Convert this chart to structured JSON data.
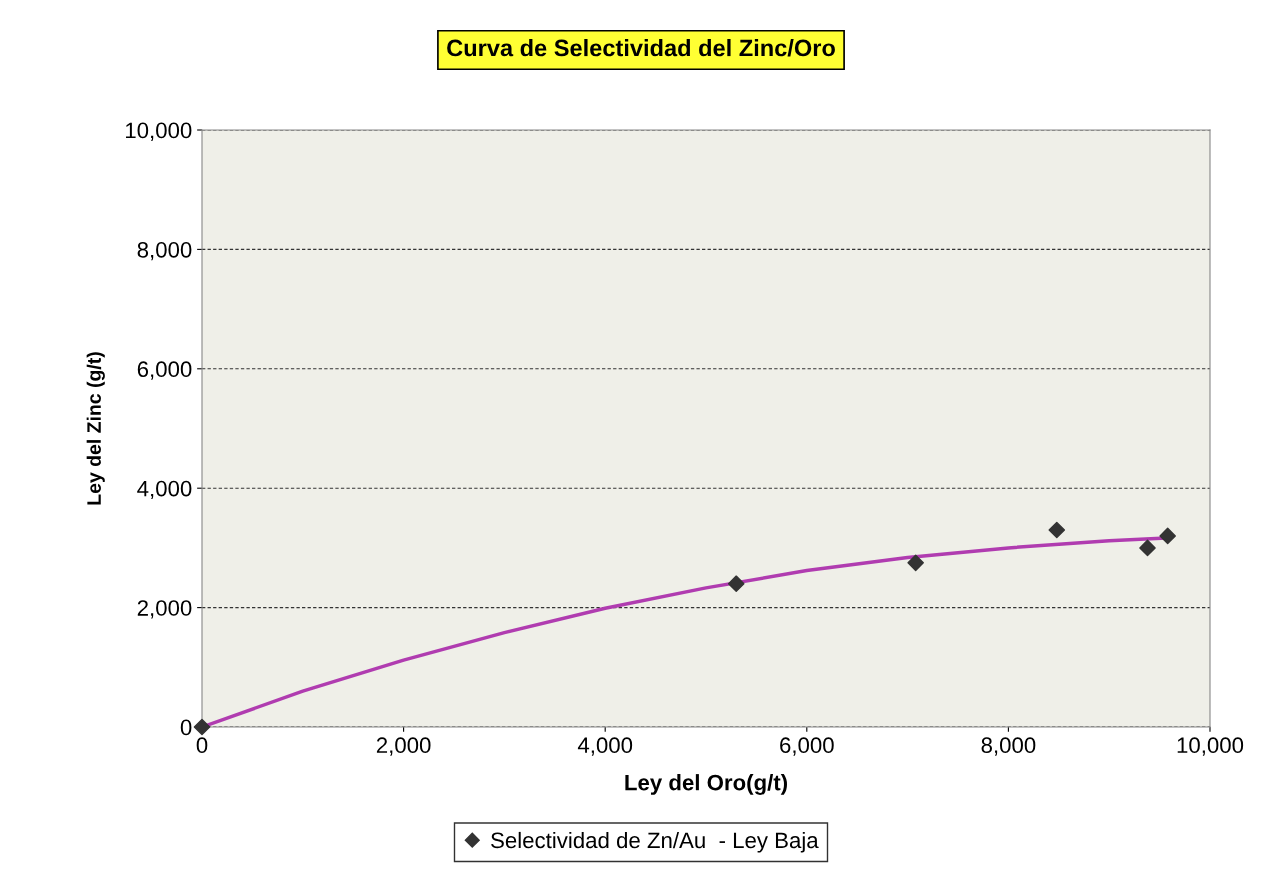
{
  "chart_data": {
    "type": "scatter",
    "title": "Curva de Selectividad del Zinc/Oro",
    "xlabel": "Ley del Oro(g/t)",
    "ylabel": "Ley del Zinc (g/t)",
    "series": [
      {
        "name": "Selectividad de Zn/Au  - Ley Baja",
        "color": "#333333",
        "marker": "diamond",
        "x": [
          0,
          5300,
          7080,
          8480,
          9380,
          9580
        ],
        "values": [
          0,
          2400,
          2750,
          3300,
          3000,
          3200
        ]
      },
      {
        "type": "line",
        "color": "#b03cb0",
        "marker": "none",
        "line_style": "solid",
        "x": [
          0,
          1000,
          2000,
          3000,
          4000,
          5000,
          6000,
          7000,
          8000,
          9000,
          9600
        ],
        "values": [
          0,
          600,
          1120,
          1580,
          1990,
          2330,
          2620,
          2840,
          3000,
          3120,
          3170
        ]
      }
    ],
    "xlim": [
      0,
      10000
    ],
    "xticks": [
      {
        "value": 0,
        "label": "0"
      },
      {
        "value": 2000,
        "label": "2,000"
      },
      {
        "value": 4000,
        "label": "4,000"
      },
      {
        "value": 6000,
        "label": "6,000"
      },
      {
        "value": 8000,
        "label": "8,000"
      },
      {
        "value": 10000,
        "label": "10,000"
      }
    ],
    "ylim": [
      0,
      10000
    ],
    "yticks": [
      {
        "value": 0,
        "label": "0"
      },
      {
        "value": 2000,
        "label": "2,000"
      },
      {
        "value": 4000,
        "label": "4,000"
      },
      {
        "value": 6000,
        "label": "6,000"
      },
      {
        "value": 8000,
        "label": "8,000"
      },
      {
        "value": 10000,
        "label": "10,000"
      }
    ],
    "grid": "y",
    "legend": "bottom"
  }
}
